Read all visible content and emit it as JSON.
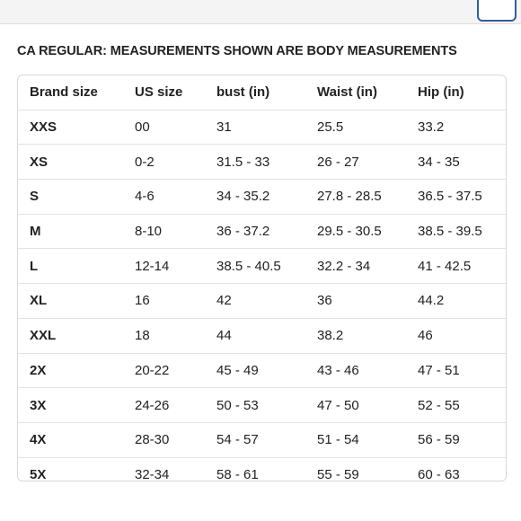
{
  "heading": "CA REGULAR: MEASUREMENTS SHOWN ARE BODY MEASUREMENTS",
  "table": {
    "header": [
      "Brand size",
      "US size",
      "bust (in)",
      "Waist (in)",
      "Hip (in)"
    ],
    "rows": [
      [
        "XXS",
        "00",
        "31",
        "25.5",
        "33.2"
      ],
      [
        "XS",
        "0-2",
        "31.5 - 33",
        "26 - 27",
        "34 - 35"
      ],
      [
        "S",
        "4-6",
        "34 - 35.2",
        "27.8 - 28.5",
        "36.5 - 37.5"
      ],
      [
        "M",
        "8-10",
        "36 - 37.2",
        "29.5 - 30.5",
        "38.5 - 39.5"
      ],
      [
        "L",
        "12-14",
        "38.5 - 40.5",
        "32.2 - 34",
        "41 - 42.5"
      ],
      [
        "XL",
        "16",
        "42",
        "36",
        "44.2"
      ],
      [
        "XXL",
        "18",
        "44",
        "38.2",
        "46"
      ],
      [
        "2X",
        "20-22",
        "45 - 49",
        "43 - 46",
        "47 - 51"
      ],
      [
        "3X",
        "24-26",
        "50 - 53",
        "47 - 50",
        "52 - 55"
      ],
      [
        "4X",
        "28-30",
        "54 - 57",
        "51 - 54",
        "56 - 59"
      ],
      [
        "5X",
        "32-34",
        "58 - 61",
        "55 - 59",
        "60 - 63"
      ]
    ]
  }
}
